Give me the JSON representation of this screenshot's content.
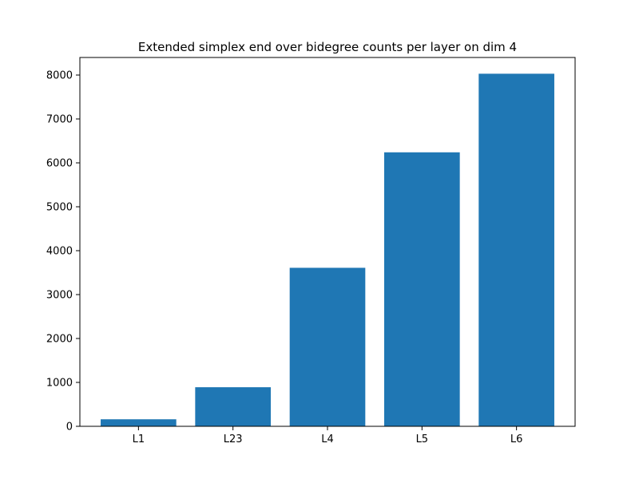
{
  "chart_data": {
    "type": "bar",
    "title": "Extended simplex end over bidegree counts per layer on dim 4",
    "xlabel": "",
    "ylabel": "",
    "categories": [
      "L1",
      "L23",
      "L4",
      "L5",
      "L6"
    ],
    "values": [
      160,
      890,
      3610,
      6240,
      8030
    ],
    "ylim": [
      0,
      8400
    ],
    "yticks": [
      0,
      1000,
      2000,
      3000,
      4000,
      5000,
      6000,
      7000,
      8000
    ],
    "grid": false,
    "legend": "none",
    "bar_color": "#1f77b4"
  }
}
